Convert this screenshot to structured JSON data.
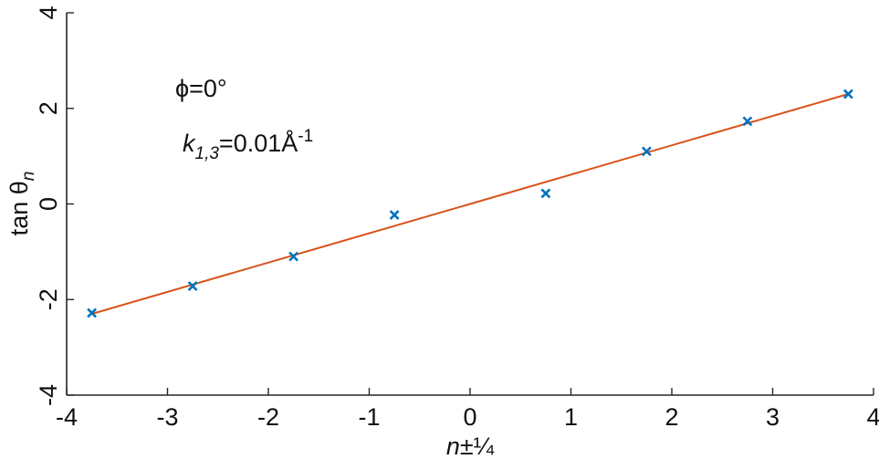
{
  "chart_data": {
    "type": "scatter",
    "xlabel": {
      "italic": "n",
      "rest": "±¼"
    },
    "ylabel": {
      "main": "tan θ",
      "sub": "n"
    },
    "xlim": [
      -4,
      4
    ],
    "ylim": [
      -4,
      4
    ],
    "xticks": [
      -4,
      -3,
      -2,
      -1,
      0,
      1,
      2,
      3,
      4
    ],
    "yticks": [
      -4,
      -2,
      0,
      2,
      4
    ],
    "xtick_labels": [
      "-4",
      "-3",
      "-2",
      "-1",
      "0",
      "1",
      "2",
      "3",
      "4"
    ],
    "ytick_labels": [
      "-4",
      "-2",
      "0",
      "2",
      "4"
    ],
    "grid": false,
    "series": [
      {
        "kind": "points",
        "marker": "x",
        "color": "#0072BD",
        "x": [
          -3.75,
          -2.75,
          -1.75,
          -0.75,
          0.75,
          1.75,
          2.75,
          3.75
        ],
        "y": [
          -2.28,
          -1.72,
          -1.1,
          -0.23,
          0.22,
          1.1,
          1.73,
          2.3
        ]
      },
      {
        "kind": "line",
        "color": "#D95319",
        "x": [
          -3.75,
          3.75
        ],
        "y": [
          -2.3,
          2.3
        ]
      }
    ],
    "annotations": [
      {
        "id": "phi",
        "text": "ϕ=0°"
      },
      {
        "id": "k",
        "italic": "k",
        "sub": "1,3",
        "rest": "=0.01Å",
        "sup": "-1"
      }
    ]
  }
}
